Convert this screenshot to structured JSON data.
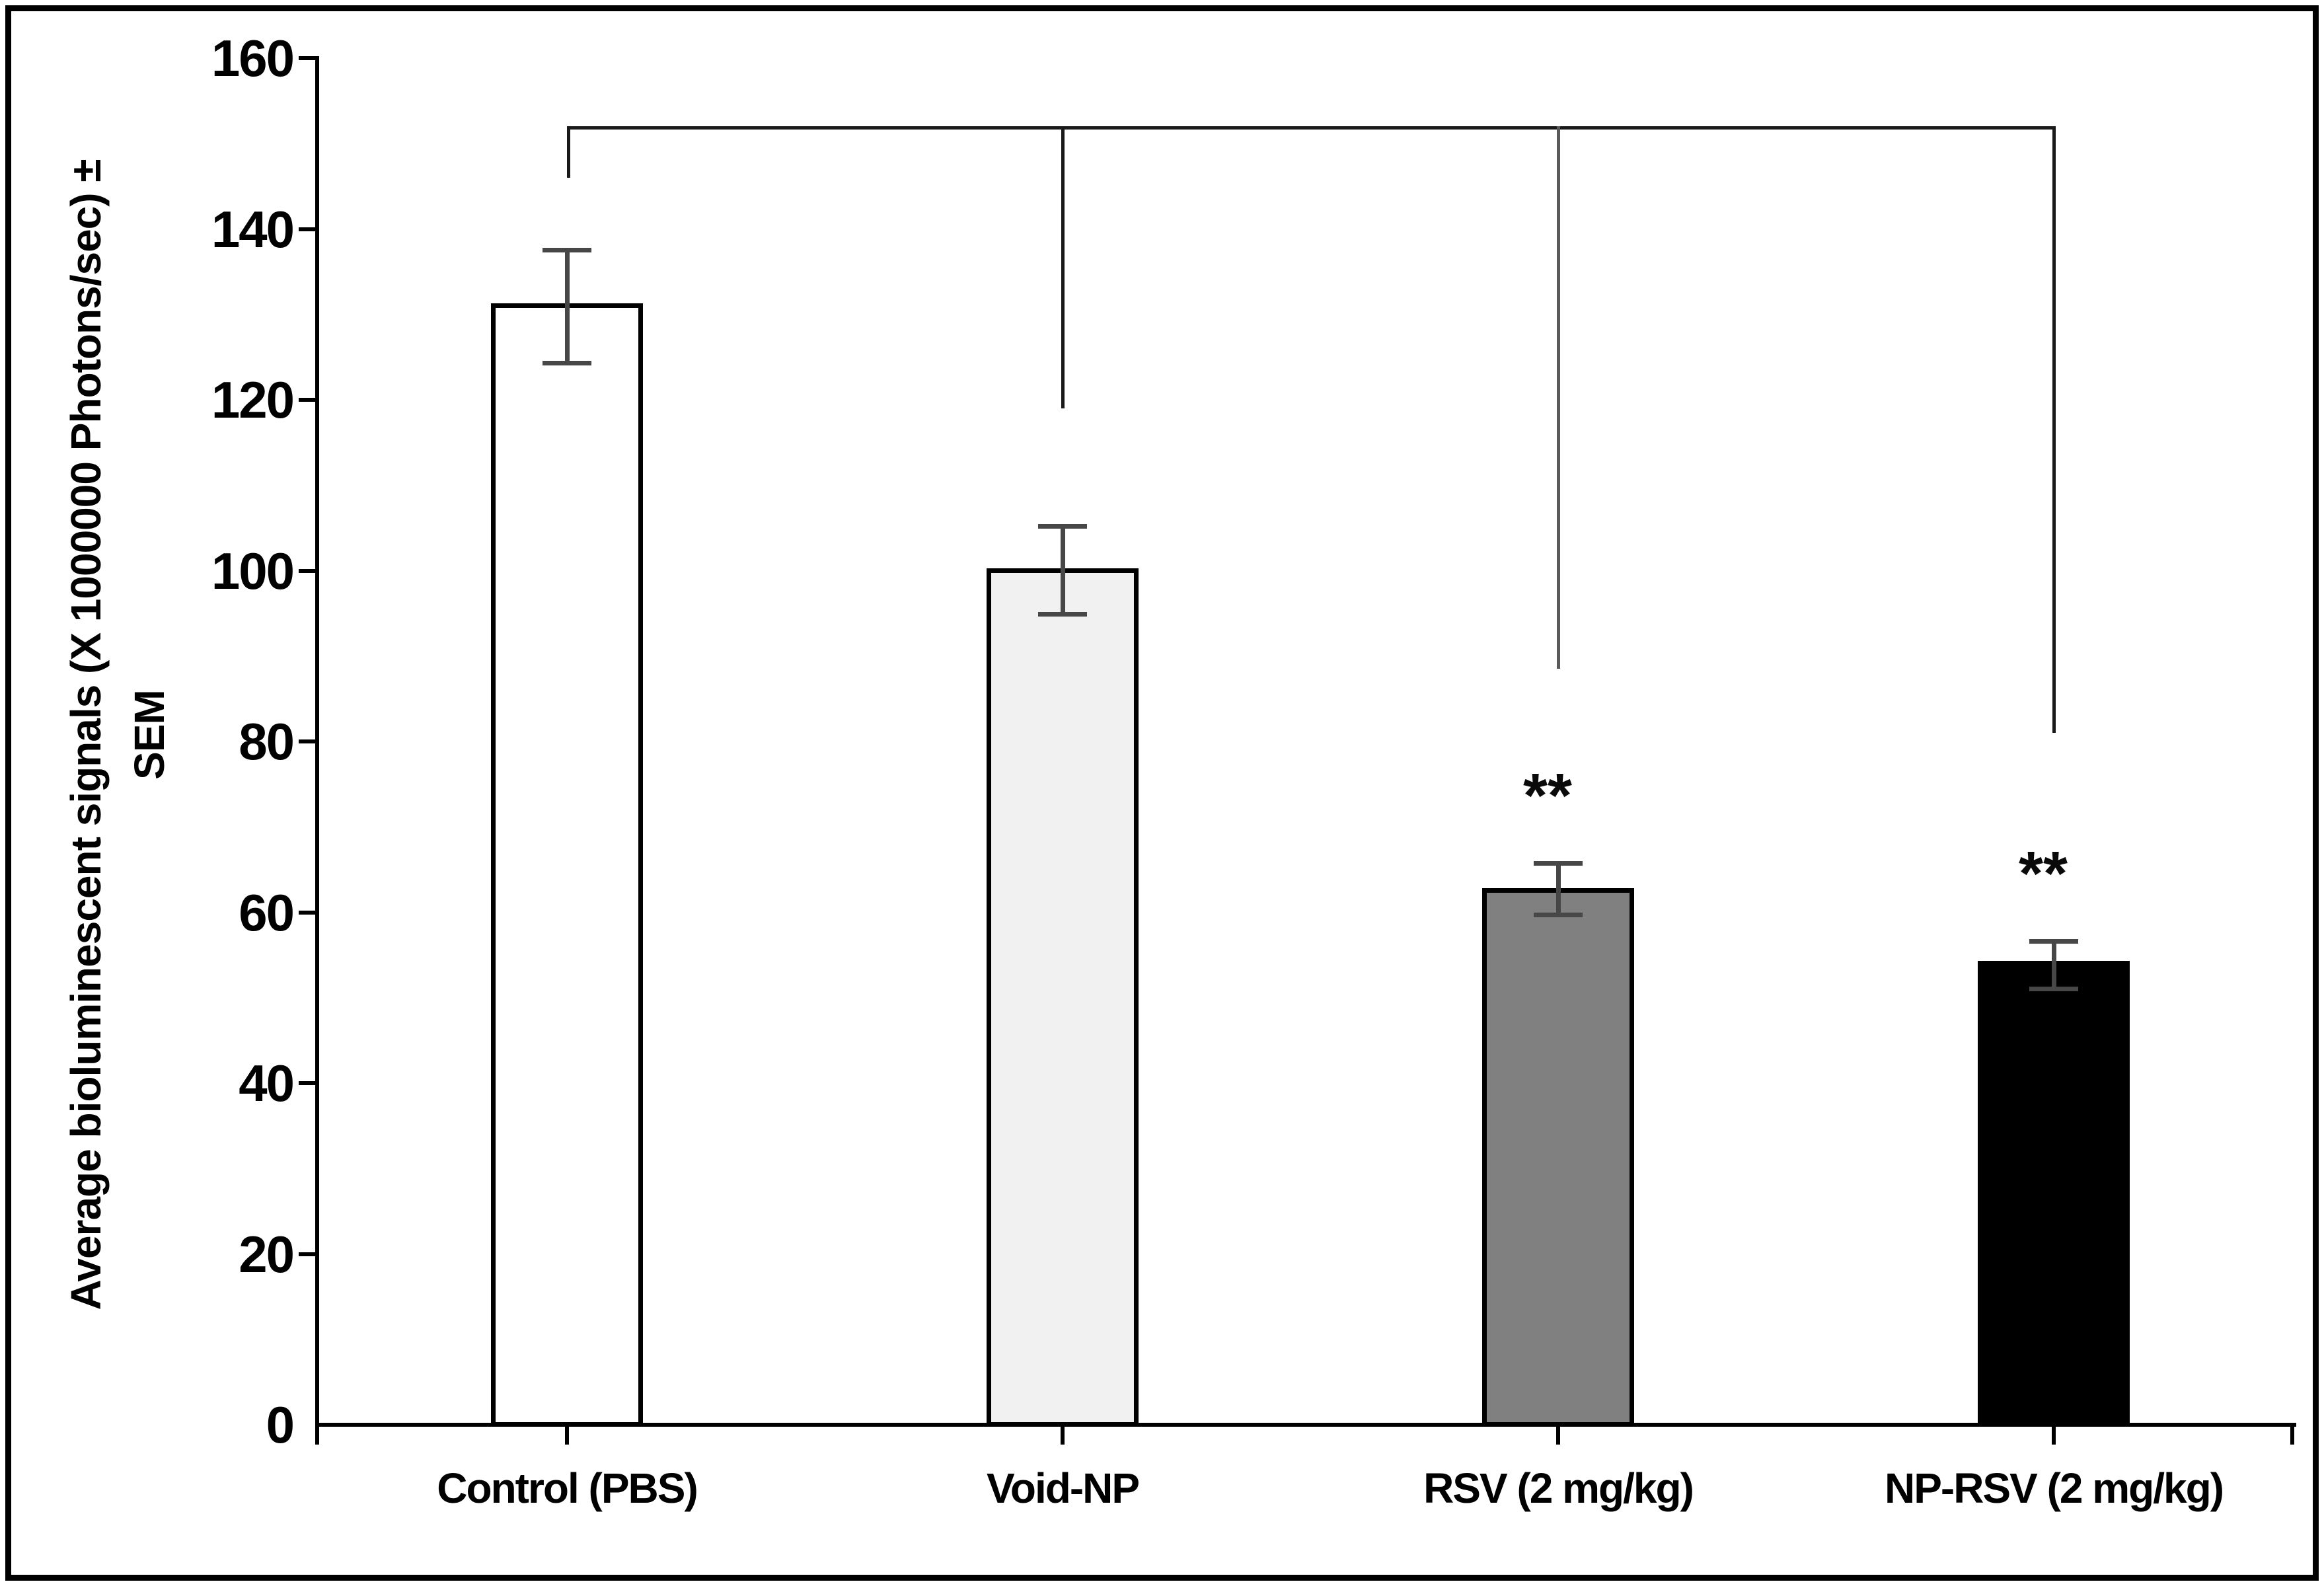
{
  "figure": {
    "background_color": "#ffffff",
    "border_color": "#000000"
  },
  "chart_data": {
    "type": "bar",
    "title": "",
    "xlabel": "",
    "ylabel_line1": "Average bioluminescent signals (X 1000000 Photons/sec) ±",
    "ylabel_line2": "SEM",
    "categories": [
      "Control (PBS)",
      "Void-NP",
      "RSV (2 mg/kg)",
      "NP-RSV (2 mg/kg)"
    ],
    "values": [
      131,
      100,
      62.5,
      54
    ],
    "errors_plus": [
      6.6,
      5.2,
      3.3,
      2.6
    ],
    "errors_minus": [
      6.7,
      5.1,
      2.8,
      2.9
    ],
    "significance": [
      "",
      "",
      "**",
      "**"
    ],
    "bar_fill_colors": [
      "#ffffff",
      "#f1f1f1",
      "#808080",
      "#000000"
    ],
    "bar_outline_color": "#000000",
    "error_bar_color": "#474747",
    "ylim": [
      0,
      160
    ],
    "yticks": [
      0,
      20,
      40,
      60,
      80,
      100,
      120,
      140,
      160
    ],
    "grid": "off",
    "legend": "none",
    "comparison_bracket": {
      "top_value": 152,
      "spans_categories": [
        "Control (PBS)",
        "Void-NP",
        "RSV (2 mg/kg)",
        "NP-RSV (2 mg/kg)"
      ],
      "drop_end_values": [
        146,
        119,
        88.5,
        81
      ],
      "line_color": "#1a1a1a",
      "third_drop_color": "#5a5a5a"
    }
  }
}
